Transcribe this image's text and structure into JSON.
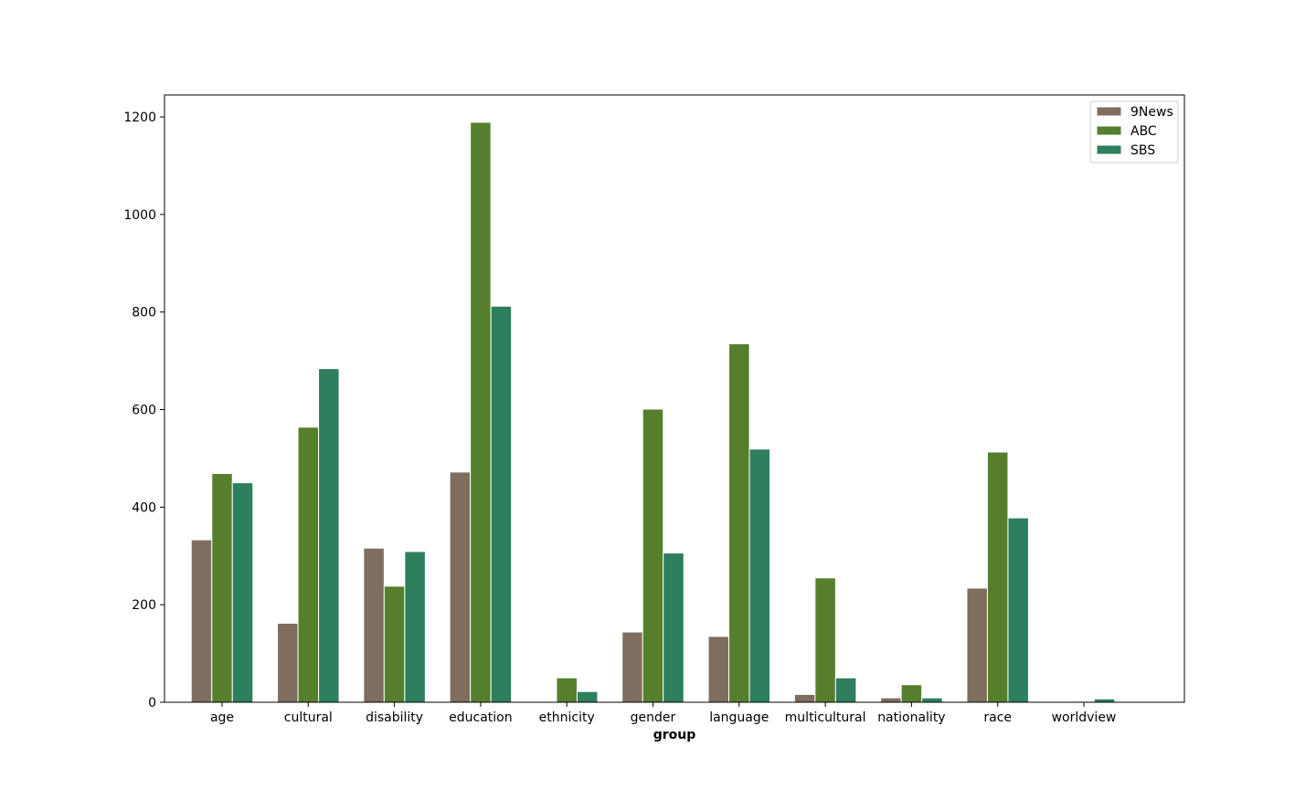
{
  "chart_data": {
    "type": "bar",
    "title": "",
    "xlabel": "group",
    "ylabel": "",
    "ylim": [
      0,
      1245
    ],
    "yticks": [
      0,
      200,
      400,
      600,
      800,
      1000,
      1200
    ],
    "grid": false,
    "legend_position": "top-right",
    "categories": [
      "age",
      "cultural",
      "disability",
      "education",
      "ethnicity",
      "gender",
      "language",
      "multicultural",
      "nationality",
      "race",
      "worldview"
    ],
    "series": [
      {
        "name": "9News",
        "color": "#7f6d5f",
        "values": [
          333,
          162,
          316,
          472,
          0,
          144,
          135,
          16,
          9,
          234,
          0
        ]
      },
      {
        "name": "ABC",
        "color": "#557f2d",
        "values": [
          469,
          564,
          238,
          1189,
          50,
          601,
          735,
          255,
          36,
          513,
          2
        ]
      },
      {
        "name": "SBS",
        "color": "#2d7f5e",
        "values": [
          450,
          684,
          309,
          812,
          22,
          306,
          519,
          50,
          9,
          378,
          7
        ]
      }
    ]
  }
}
